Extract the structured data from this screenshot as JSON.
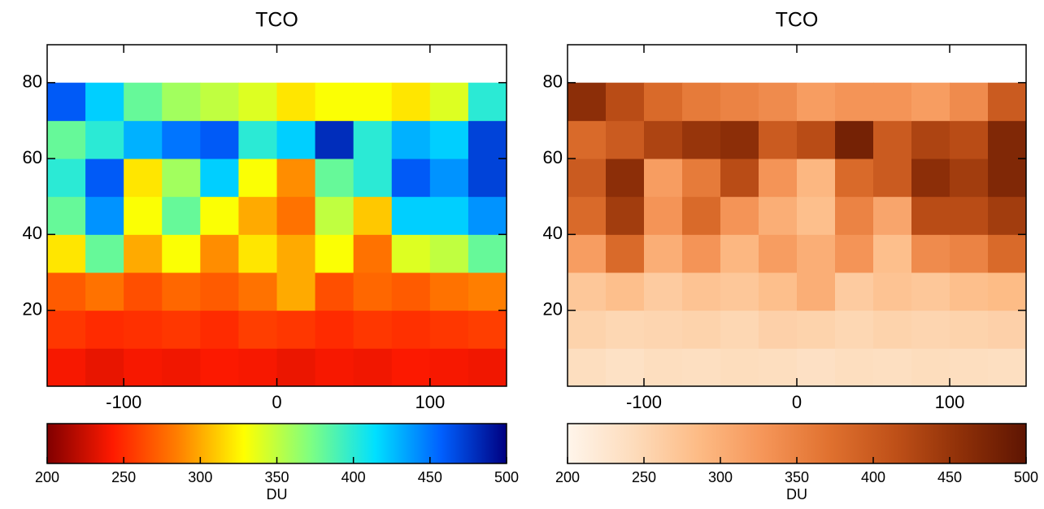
{
  "chart_data": [
    {
      "type": "heatmap",
      "title": "TCO",
      "x": [
        -137.5,
        -112.5,
        -87.5,
        -62.5,
        -37.5,
        -12.5,
        12.5,
        37.5,
        62.5,
        87.5,
        112.5,
        137.5
      ],
      "y": [
        5,
        15,
        25,
        35,
        45,
        55,
        65,
        75
      ],
      "z": [
        [
          240,
          235,
          240,
          238,
          242,
          240,
          236,
          240,
          238,
          242,
          240,
          238
        ],
        [
          255,
          250,
          252,
          255,
          250,
          258,
          255,
          250,
          255,
          252,
          255,
          258
        ],
        [
          270,
          280,
          265,
          275,
          270,
          280,
          300,
          265,
          275,
          270,
          280,
          285
        ],
        [
          320,
          380,
          300,
          330,
          290,
          320,
          300,
          330,
          280,
          340,
          350,
          380
        ],
        [
          380,
          440,
          330,
          380,
          330,
          300,
          280,
          350,
          310,
          420,
          420,
          440
        ],
        [
          400,
          460,
          320,
          360,
          420,
          330,
          290,
          380,
          400,
          460,
          440,
          470
        ],
        [
          380,
          400,
          430,
          450,
          460,
          400,
          420,
          480,
          400,
          430,
          420,
          470
        ],
        [
          460,
          420,
          380,
          360,
          350,
          340,
          320,
          330,
          330,
          320,
          340,
          400
        ]
      ],
      "xlim": [
        -150,
        150
      ],
      "ylim": [
        0,
        90
      ],
      "xticks": [
        -100,
        0,
        100
      ],
      "yticks": [
        20,
        40,
        60,
        80
      ],
      "colorbar": {
        "lim": [
          200,
          500
        ],
        "ticks": [
          200,
          250,
          300,
          350,
          400,
          450,
          500
        ],
        "label": "DU",
        "colors": [
          "#800000",
          "#ff1a00",
          "#ff8000",
          "#ffff00",
          "#80ff80",
          "#00e0ff",
          "#0060ff",
          "#000080"
        ]
      }
    },
    {
      "type": "heatmap",
      "title": "TCO",
      "x": [
        -137.5,
        -112.5,
        -87.5,
        -62.5,
        -37.5,
        -12.5,
        12.5,
        37.5,
        62.5,
        87.5,
        112.5,
        137.5
      ],
      "y": [
        5,
        15,
        25,
        35,
        45,
        55,
        65,
        75
      ],
      "z": [
        [
          240,
          235,
          240,
          238,
          242,
          240,
          236,
          240,
          238,
          242,
          240,
          238
        ],
        [
          255,
          250,
          252,
          255,
          250,
          258,
          255,
          250,
          255,
          252,
          255,
          258
        ],
        [
          270,
          280,
          265,
          275,
          270,
          280,
          300,
          265,
          275,
          270,
          280,
          285
        ],
        [
          320,
          380,
          300,
          330,
          290,
          320,
          300,
          330,
          280,
          340,
          350,
          380
        ],
        [
          380,
          440,
          330,
          380,
          330,
          300,
          280,
          350,
          310,
          420,
          420,
          440
        ],
        [
          400,
          460,
          320,
          360,
          420,
          330,
          290,
          380,
          400,
          460,
          440,
          470
        ],
        [
          380,
          400,
          430,
          450,
          460,
          400,
          420,
          480,
          400,
          430,
          420,
          470
        ],
        [
          460,
          420,
          380,
          360,
          350,
          340,
          320,
          330,
          330,
          320,
          340,
          400
        ]
      ],
      "xlim": [
        -150,
        150
      ],
      "ylim": [
        0,
        90
      ],
      "xticks": [
        -100,
        0,
        100
      ],
      "yticks": [
        20,
        40,
        60,
        80
      ],
      "colorbar": {
        "lim": [
          200,
          500
        ],
        "ticks": [
          200,
          250,
          300,
          350,
          400,
          450,
          500
        ],
        "label": "DU",
        "colors": [
          "#fff5eb",
          "#fddcbc",
          "#fdbb85",
          "#f59558",
          "#e0712f",
          "#bf5018",
          "#8f3008",
          "#5e1502"
        ]
      }
    }
  ]
}
